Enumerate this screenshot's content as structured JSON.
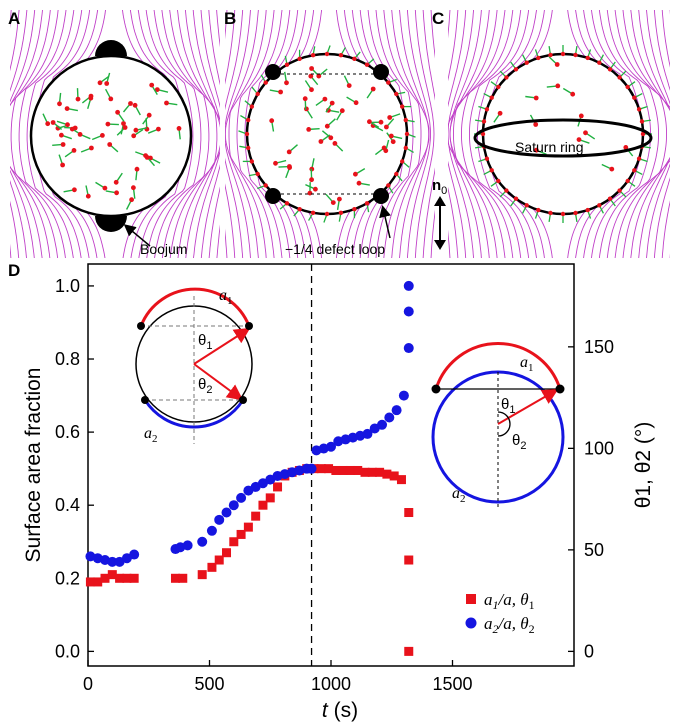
{
  "panels": {
    "A": {
      "label": "A",
      "annotation": "Boojum"
    },
    "B": {
      "label": "B",
      "annotation": "−1/4 defect loop"
    },
    "C": {
      "label": "C",
      "annotation": "Saturn ring",
      "director": "n",
      "director_sub": "0"
    },
    "D": {
      "label": "D"
    }
  },
  "chart_data": {
    "type": "scatter",
    "xlabel_italic": "t",
    "xlabel_unit": " (s)",
    "ylabel": "Surface area fraction",
    "y2label": "θ1, θ2 (°)",
    "xlim": [
      0,
      2000
    ],
    "ylim": [
      -0.04,
      1.06
    ],
    "y2lim": [
      -7.2,
      190.8
    ],
    "x_ticks": [
      0,
      500,
      1000,
      1500
    ],
    "y_ticks": [
      0.0,
      0.2,
      0.4,
      0.6,
      0.8,
      1.0
    ],
    "y2_ticks": [
      0,
      50,
      100,
      150
    ],
    "vline_x": 920,
    "series": [
      {
        "name": "a1/a, θ1",
        "legend_main": "a",
        "legend_sub": "1",
        "legend_rest": "/a, θ",
        "legend_sub2": "1",
        "color": "#e8121b",
        "marker": "square",
        "x": [
          10,
          40,
          70,
          100,
          130,
          160,
          190,
          360,
          390,
          470,
          510,
          540,
          570,
          600,
          630,
          660,
          690,
          720,
          750,
          780,
          810,
          840,
          870,
          900,
          930,
          960,
          990,
          1020,
          1050,
          1080,
          1110,
          1140,
          1170,
          1200,
          1230,
          1260,
          1290,
          1320,
          1320,
          1320
        ],
        "y": [
          0.19,
          0.19,
          0.2,
          0.21,
          0.2,
          0.2,
          0.2,
          0.2,
          0.2,
          0.21,
          0.23,
          0.25,
          0.27,
          0.3,
          0.32,
          0.34,
          0.37,
          0.4,
          0.42,
          0.45,
          0.48,
          0.49,
          0.495,
          0.5,
          0.5,
          0.5,
          0.5,
          0.495,
          0.495,
          0.495,
          0.495,
          0.49,
          0.49,
          0.49,
          0.485,
          0.48,
          0.47,
          0.38,
          0.25,
          0.0
        ]
      },
      {
        "name": "a2/a, θ2",
        "legend_main": "a",
        "legend_sub": "2",
        "legend_rest": "/a, θ",
        "legend_sub2": "2",
        "color": "#1515e0",
        "marker": "circle",
        "x": [
          10,
          40,
          70,
          100,
          130,
          160,
          190,
          360,
          380,
          410,
          470,
          510,
          540,
          570,
          600,
          630,
          660,
          690,
          720,
          750,
          780,
          810,
          840,
          870,
          900,
          920,
          940,
          970,
          1000,
          1030,
          1060,
          1090,
          1120,
          1150,
          1180,
          1210,
          1240,
          1270,
          1300,
          1320,
          1320,
          1320
        ],
        "y": [
          0.26,
          0.255,
          0.25,
          0.245,
          0.245,
          0.255,
          0.265,
          0.28,
          0.285,
          0.29,
          0.3,
          0.33,
          0.36,
          0.38,
          0.4,
          0.42,
          0.44,
          0.45,
          0.46,
          0.47,
          0.48,
          0.485,
          0.49,
          0.495,
          0.5,
          0.5,
          0.55,
          0.555,
          0.56,
          0.575,
          0.58,
          0.585,
          0.59,
          0.595,
          0.61,
          0.62,
          0.64,
          0.66,
          0.7,
          0.83,
          0.93,
          1.0
        ]
      }
    ]
  },
  "inset_left": {
    "a1_main": "a",
    "a1_sub": "1",
    "a2_main": "a",
    "a2_sub": "2",
    "t1_main": "θ",
    "t1_sub": "1",
    "t2_main": "θ",
    "t2_sub": "2"
  },
  "inset_right": {
    "a1_main": "a",
    "a1_sub": "1",
    "a2_main": "a",
    "a2_sub": "2",
    "t1_main": "θ",
    "t1_sub": "1",
    "t2_main": "θ",
    "t2_sub": "2"
  },
  "colors": {
    "red": "#e8121b",
    "blue": "#1515e0",
    "field_lines": "#c040c8",
    "director_green": "#20b040"
  }
}
